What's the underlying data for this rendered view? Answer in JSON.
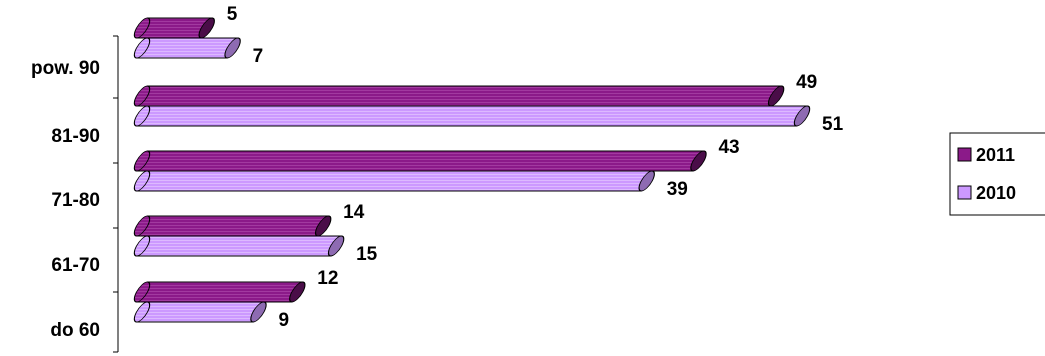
{
  "chart_data": {
    "type": "bar",
    "orientation": "horizontal",
    "style": "3d-cylinder",
    "categories": [
      "pow. 90",
      "81-90",
      "71-80",
      "61-70",
      "do 60"
    ],
    "series": [
      {
        "name": "2011",
        "values": [
          5,
          49,
          43,
          14,
          12
        ],
        "color": "#8B1A89",
        "end_color": "#4A0D48"
      },
      {
        "name": "2010",
        "values": [
          7,
          51,
          39,
          15,
          9
        ],
        "color": "#CC99FF",
        "end_color": "#8E6BB2"
      }
    ],
    "xlim": [
      0,
      51
    ],
    "axis_visible": false,
    "grid": false,
    "legend_position": "right"
  }
}
